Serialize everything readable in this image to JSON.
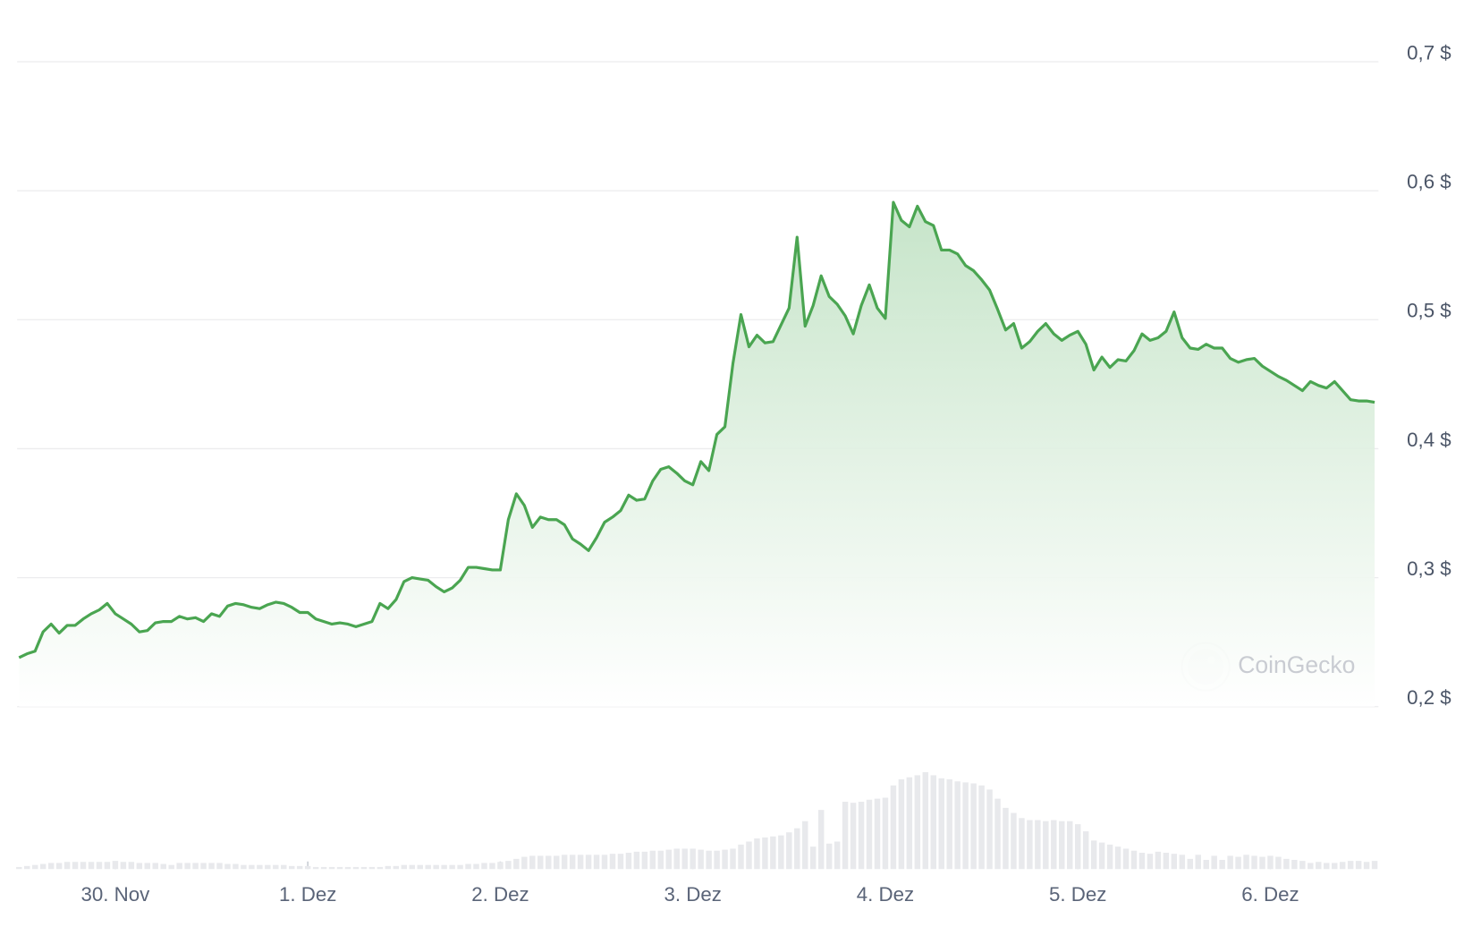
{
  "chart_data": [
    {
      "type": "line",
      "color": "#4aa551",
      "watermark": "CoinGecko",
      "grid": true,
      "ylim": [
        0.2,
        0.7
      ],
      "yticks": [
        {
          "value": 0.2,
          "label": "0,2 $"
        },
        {
          "value": 0.3,
          "label": "0,3 $"
        },
        {
          "value": 0.4,
          "label": "0,4 $"
        },
        {
          "value": 0.5,
          "label": "0,5 $"
        },
        {
          "value": 0.6,
          "label": "0,6 $"
        },
        {
          "value": 0.7,
          "label": "0,7 $"
        }
      ],
      "categories": [
        null,
        null,
        null,
        null,
        null,
        null,
        null,
        null,
        null,
        null,
        null,
        null,
        "30. Nov",
        null,
        null,
        null,
        null,
        null,
        null,
        null,
        null,
        null,
        null,
        null,
        null,
        null,
        null,
        null,
        null,
        null,
        null,
        null,
        null,
        null,
        null,
        null,
        "1. Dez",
        null,
        null,
        null,
        null,
        null,
        null,
        null,
        null,
        null,
        null,
        null,
        null,
        null,
        null,
        null,
        null,
        null,
        null,
        null,
        null,
        null,
        null,
        null,
        "2. Dez",
        null,
        null,
        null,
        null,
        null,
        null,
        null,
        null,
        null,
        null,
        null,
        null,
        null,
        null,
        null,
        null,
        null,
        null,
        null,
        null,
        null,
        null,
        null,
        "3. Dez",
        null,
        null,
        null,
        null,
        null,
        null,
        null,
        null,
        null,
        null,
        null,
        null,
        null,
        null,
        null,
        null,
        null,
        null,
        null,
        null,
        null,
        null,
        null,
        "4. Dez",
        null,
        null,
        null,
        null,
        null,
        null,
        null,
        null,
        null,
        null,
        null,
        null,
        null,
        null,
        null,
        null,
        null,
        null,
        null,
        null,
        null,
        null,
        null,
        "5. Dez",
        null,
        null,
        null,
        null,
        null,
        null,
        null,
        null,
        null,
        null,
        null,
        null,
        null,
        null,
        null,
        null,
        null,
        null,
        null,
        null,
        null,
        null,
        null,
        "6. Dez",
        null,
        null,
        null,
        null,
        null,
        null,
        null,
        null,
        null,
        null,
        null,
        null,
        null
      ],
      "values": [
        0.238,
        0.241,
        0.243,
        0.258,
        0.264,
        0.257,
        0.263,
        0.263,
        0.268,
        0.272,
        0.275,
        0.28,
        0.272,
        0.268,
        0.264,
        0.258,
        0.259,
        0.265,
        0.266,
        0.266,
        0.27,
        0.268,
        0.269,
        0.266,
        0.272,
        0.27,
        0.278,
        0.28,
        0.279,
        0.277,
        0.276,
        0.279,
        0.281,
        0.28,
        0.277,
        0.273,
        0.273,
        0.268,
        0.266,
        0.264,
        0.265,
        0.264,
        0.262,
        0.264,
        0.266,
        0.28,
        0.276,
        0.283,
        0.297,
        0.3,
        0.299,
        0.298,
        0.293,
        0.289,
        0.292,
        0.298,
        0.308,
        0.308,
        0.307,
        0.306,
        0.306,
        0.345,
        0.365,
        0.356,
        0.339,
        0.347,
        0.345,
        0.345,
        0.341,
        0.33,
        0.326,
        0.321,
        0.331,
        0.343,
        0.347,
        0.352,
        0.364,
        0.36,
        0.361,
        0.375,
        0.384,
        0.386,
        0.381,
        0.375,
        0.372,
        0.39,
        0.383,
        0.411,
        0.417,
        0.466,
        0.504,
        0.479,
        0.488,
        0.482,
        0.483,
        0.496,
        0.509,
        0.564,
        0.495,
        0.511,
        0.534,
        0.518,
        0.512,
        0.503,
        0.489,
        0.511,
        0.527,
        0.509,
        0.501,
        0.591,
        0.577,
        0.572,
        0.588,
        0.576,
        0.573,
        0.554,
        0.554,
        0.551,
        0.542,
        0.538,
        0.531,
        0.523,
        0.508,
        0.492,
        0.497,
        0.478,
        0.483,
        0.491,
        0.497,
        0.489,
        0.484,
        0.488,
        0.491,
        0.481,
        0.461,
        0.471,
        0.463,
        0.469,
        0.468,
        0.476,
        0.489,
        0.484,
        0.486,
        0.491,
        0.506,
        0.486,
        0.478,
        0.477,
        0.481,
        0.478,
        0.478,
        0.47,
        0.467,
        0.469,
        0.47,
        0.464,
        0.46,
        0.456,
        0.453,
        0.449,
        0.445,
        0.452,
        0.449,
        0.447,
        0.452,
        0.445,
        0.438,
        0.437,
        0.437,
        0.436
      ]
    },
    {
      "type": "bar",
      "color": "#e8e9ec",
      "values": [
        2,
        3,
        4,
        5,
        6,
        6,
        7,
        7,
        7,
        7,
        7,
        7,
        8,
        7,
        7,
        6,
        6,
        6,
        5,
        4,
        6,
        6,
        6,
        6,
        6,
        6,
        5,
        5,
        4,
        4,
        4,
        4,
        4,
        4,
        3,
        3,
        3,
        2,
        2,
        2,
        2,
        2,
        2,
        2,
        2,
        2,
        3,
        3,
        4,
        4,
        4,
        4,
        4,
        4,
        4,
        4,
        5,
        5,
        6,
        6,
        7,
        8,
        10,
        12,
        13,
        13,
        13,
        13,
        14,
        14,
        14,
        14,
        14,
        14,
        15,
        15,
        16,
        17,
        17,
        18,
        18,
        19,
        20,
        20,
        20,
        19,
        18,
        18,
        19,
        20,
        24,
        27,
        30,
        31,
        32,
        33,
        36,
        40,
        47,
        22,
        58,
        25,
        27,
        66,
        65,
        66,
        68,
        69,
        70,
        82,
        88,
        90,
        92,
        95,
        92,
        89,
        88,
        86,
        85,
        84,
        82,
        78,
        69,
        60,
        55,
        50,
        48,
        48,
        47,
        48,
        47,
        47,
        44,
        37,
        28,
        26,
        24,
        22,
        20,
        18,
        16,
        15,
        17,
        16,
        15,
        14,
        10,
        14,
        9,
        13,
        9,
        13,
        12,
        14,
        13,
        12,
        13,
        12,
        10,
        9,
        8,
        6,
        7,
        6,
        6,
        7,
        8,
        8,
        7,
        8
      ]
    }
  ]
}
